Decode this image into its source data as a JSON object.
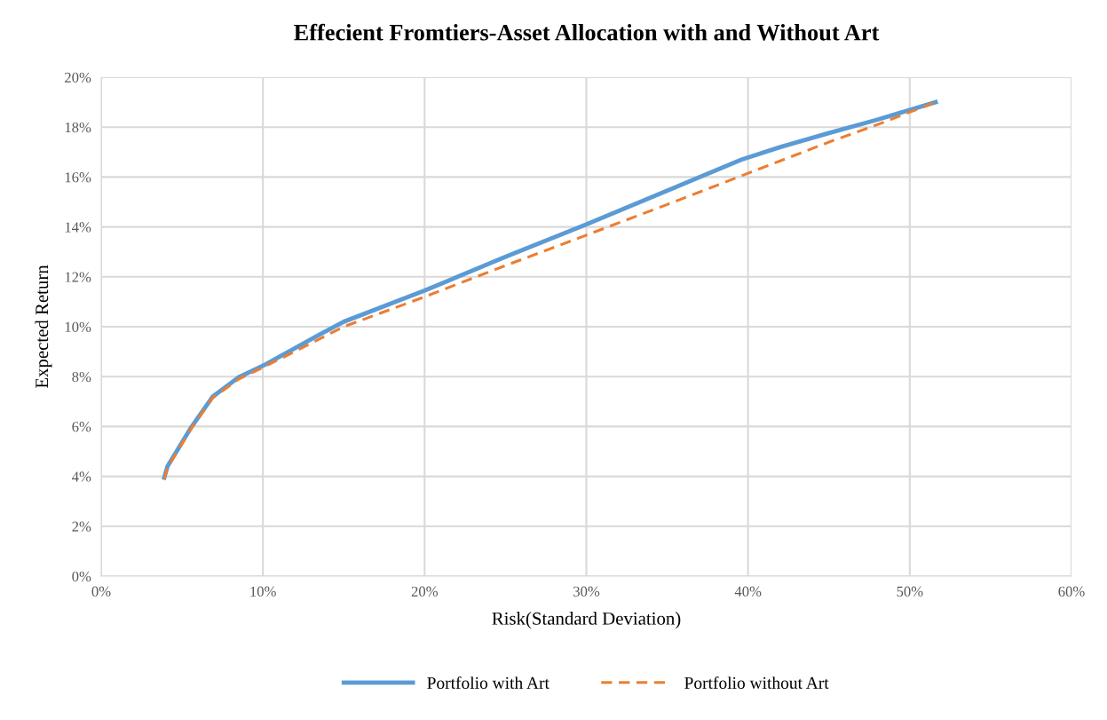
{
  "chart_data": {
    "type": "line",
    "title": "Effecient Fromtiers-Asset Allocation with and Without Art",
    "xlabel": "Risk(Standard Deviation)",
    "ylabel": "Expected Return",
    "series": [
      {
        "name": "Portfolio with Art",
        "color": "#5b9bd5",
        "line_style": "solid",
        "x": [
          3.9,
          4.1,
          5.5,
          6.9,
          8.5,
          10.2,
          13.5,
          15,
          20,
          25,
          30,
          35,
          39.6,
          42,
          45,
          48,
          51.6
        ],
        "values": [
          3.95,
          4.4,
          5.9,
          7.2,
          7.97,
          8.5,
          9.68,
          10.2,
          11.45,
          12.8,
          14.1,
          15.45,
          16.7,
          17.2,
          17.76,
          18.3,
          19.0
        ]
      },
      {
        "name": "Portfolio without Art",
        "color": "#ed7d31",
        "line_style": "dashed",
        "x": [
          3.9,
          4.1,
          5.5,
          6.9,
          8.5,
          10.2,
          15,
          20,
          25,
          30,
          35,
          40,
          45,
          48,
          51.6
        ],
        "values": [
          3.9,
          4.35,
          5.85,
          7.15,
          7.9,
          8.43,
          10.0,
          11.2,
          12.45,
          13.67,
          14.9,
          16.15,
          17.4,
          18.1,
          19.0
        ]
      }
    ],
    "xlim": [
      0,
      60
    ],
    "xticks": [
      {
        "value": 0,
        "label": "0%"
      },
      {
        "value": 10,
        "label": "10%"
      },
      {
        "value": 20,
        "label": "20%"
      },
      {
        "value": 30,
        "label": "30%"
      },
      {
        "value": 40,
        "label": "40%"
      },
      {
        "value": 50,
        "label": "50%"
      },
      {
        "value": 60,
        "label": "60%"
      }
    ],
    "ylim": [
      0,
      20
    ],
    "yticks": [
      {
        "value": 0,
        "label": "0%"
      },
      {
        "value": 2,
        "label": "2%"
      },
      {
        "value": 4,
        "label": "4%"
      },
      {
        "value": 6,
        "label": "6%"
      },
      {
        "value": 8,
        "label": "8%"
      },
      {
        "value": 10,
        "label": "10%"
      },
      {
        "value": 12,
        "label": "12%"
      },
      {
        "value": 14,
        "label": "14%"
      },
      {
        "value": 16,
        "label": "16%"
      },
      {
        "value": 18,
        "label": "18%"
      },
      {
        "value": 20,
        "label": "20%"
      }
    ],
    "grid": true,
    "legend": "bottom",
    "marker": "none"
  }
}
